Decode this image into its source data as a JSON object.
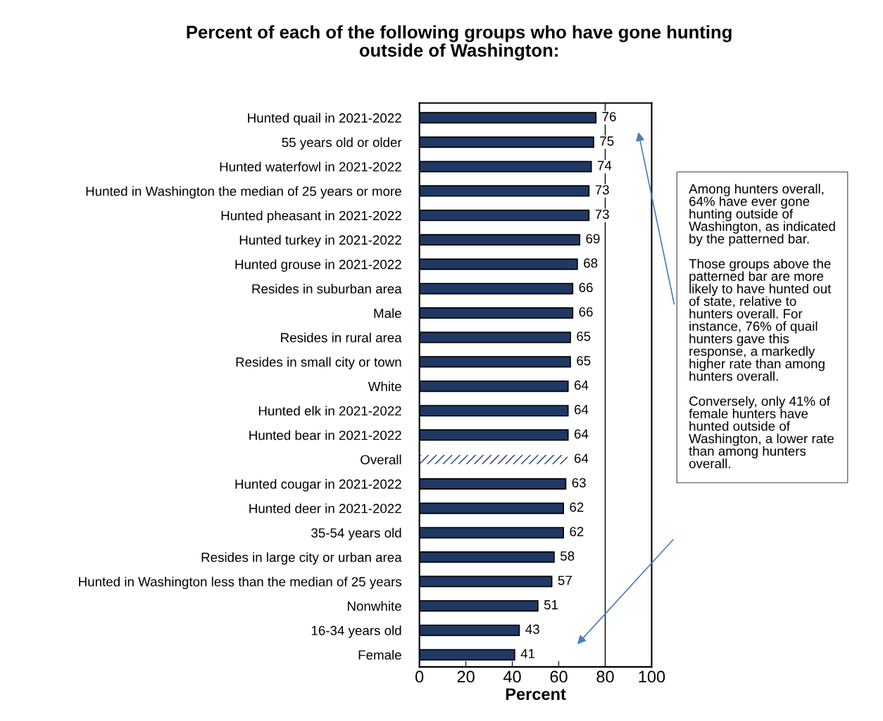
{
  "chart_data": {
    "type": "bar",
    "orientation": "horizontal",
    "title": "Percent of each of the following groups who have gone hunting\noutside of Washington:",
    "xlabel": "Percent",
    "categories": [
      "Hunted quail in 2021-2022",
      "55 years old or older",
      "Hunted waterfowl in 2021-2022",
      "Hunted in Washington the median of 25 years or more",
      "Hunted pheasant in 2021-2022",
      "Hunted turkey in 2021-2022",
      "Hunted grouse in 2021-2022",
      "Resides in suburban area",
      "Male",
      "Resides in rural area",
      "Resides in small city or town",
      "White",
      "Hunted elk in 2021-2022",
      "Hunted bear in 2021-2022",
      "Overall",
      "Hunted cougar in 2021-2022",
      "Hunted deer in 2021-2022",
      "35-54 years old",
      "Resides in large city or urban area",
      "Hunted in Washington less than the median of 25 years",
      "Nonwhite",
      "16-34 years old",
      "Female"
    ],
    "series": [
      {
        "color": "#1f3864",
        "values": [
          76,
          75,
          74,
          73,
          73,
          69,
          68,
          66,
          66,
          65,
          65,
          64,
          64,
          64,
          64,
          63,
          62,
          62,
          58,
          57,
          51,
          43,
          41
        ],
        "colors": [
          "#1f3864",
          "#1f3864",
          "#1f3864",
          "#1f3864",
          "#1f3864",
          "#1f3864",
          "#1f3864",
          "#1f3864",
          "#1f3864",
          "#1f3864",
          "#1f3864",
          "#1f3864",
          "#1f3864",
          "#1f3864",
          "#ffffff",
          "#1f3864",
          "#1f3864",
          "#1f3864",
          "#1f3864",
          "#1f3864",
          "#1f3864",
          "#1f3864",
          "#1f3864"
        ]
      }
    ],
    "data_labels": true,
    "xlim": [
      0,
      100
    ],
    "xticks": [
      0,
      20,
      40,
      60,
      80,
      100
    ],
    "ref_lines": [
      {
        "axis": "x",
        "value": 80,
        "color": "#000000"
      }
    ],
    "grid": false,
    "annotations": [
      "Among hunters overall,\n64% have ever gone\nhunting outside of\nWashington, as indicated\nby the patterned bar.\n\nThose groups above the\npatterned bar are more\nlikely to have hunted out\nof state, relative to\nhunters overall. For\ninstance, 76% of quail\nhunters gave this\nresponse, a markedly\nhigher rate than among\nhunters overall.\n\nConversely, only 41% of\nfemale hunters have\nhunted outside of\nWashington, a lower rate\nthan among hunters\noverall."
    ]
  }
}
